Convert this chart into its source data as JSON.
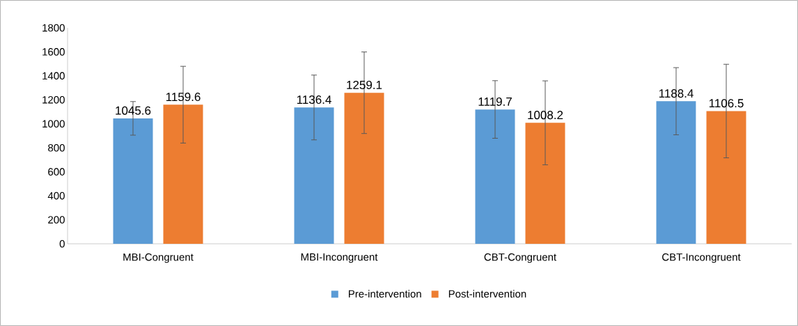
{
  "chart_data": {
    "type": "bar",
    "categories": [
      "MBI-Congruent",
      "MBI-Incongruent",
      "CBT-Congruent",
      "CBT-Incongruent"
    ],
    "series": [
      {
        "name": "Pre-intervention",
        "color": "#5b9bd5",
        "values": [
          1045.6,
          1136.4,
          1119.7,
          1188.4
        ],
        "errors": [
          140,
          270,
          240,
          280
        ]
      },
      {
        "name": "Post-intervention",
        "color": "#ed7d31",
        "values": [
          1159.6,
          1259.1,
          1008.2,
          1106.5
        ],
        "errors": [
          320,
          340,
          350,
          390
        ]
      }
    ],
    "ylim": [
      0,
      1800
    ],
    "yticks": [
      0,
      200,
      400,
      600,
      800,
      1000,
      1200,
      1400,
      1600,
      1800
    ],
    "data_labels": true,
    "grid": false,
    "legend": "bottom"
  }
}
